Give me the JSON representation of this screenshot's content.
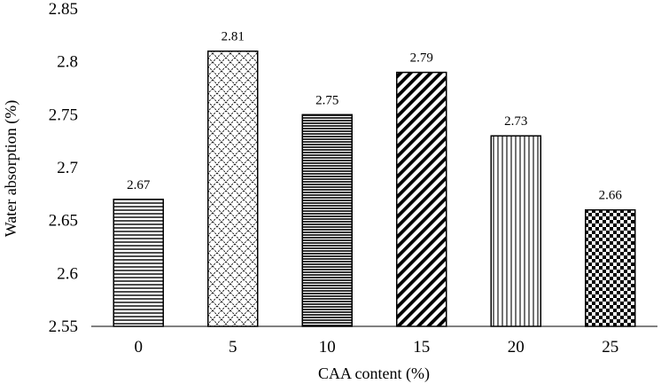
{
  "chart_data": {
    "type": "bar",
    "title": "",
    "xlabel": "CAA content (%)",
    "ylabel": "Water absorption (%)",
    "categories": [
      "0",
      "5",
      "10",
      "15",
      "20",
      "25"
    ],
    "values": [
      2.67,
      2.81,
      2.75,
      2.79,
      2.73,
      2.66
    ],
    "data_labels": [
      "2.67",
      "2.81",
      "2.75",
      "2.79",
      "2.73",
      "2.66"
    ],
    "ylim": [
      2.55,
      2.85
    ],
    "yticks": [
      "2.55",
      "2.6",
      "2.65",
      "2.7",
      "2.75",
      "2.8",
      "2.85"
    ],
    "grid": false,
    "legend": "none",
    "bar_fill": "pattern",
    "patterns": [
      "horizontal-lines",
      "diamond-lattice",
      "dense-horizontal-lines",
      "diagonal-hatch",
      "vertical-lines",
      "checkerboard"
    ],
    "colors": {
      "ink": "#000000",
      "background": "#ffffff"
    }
  }
}
